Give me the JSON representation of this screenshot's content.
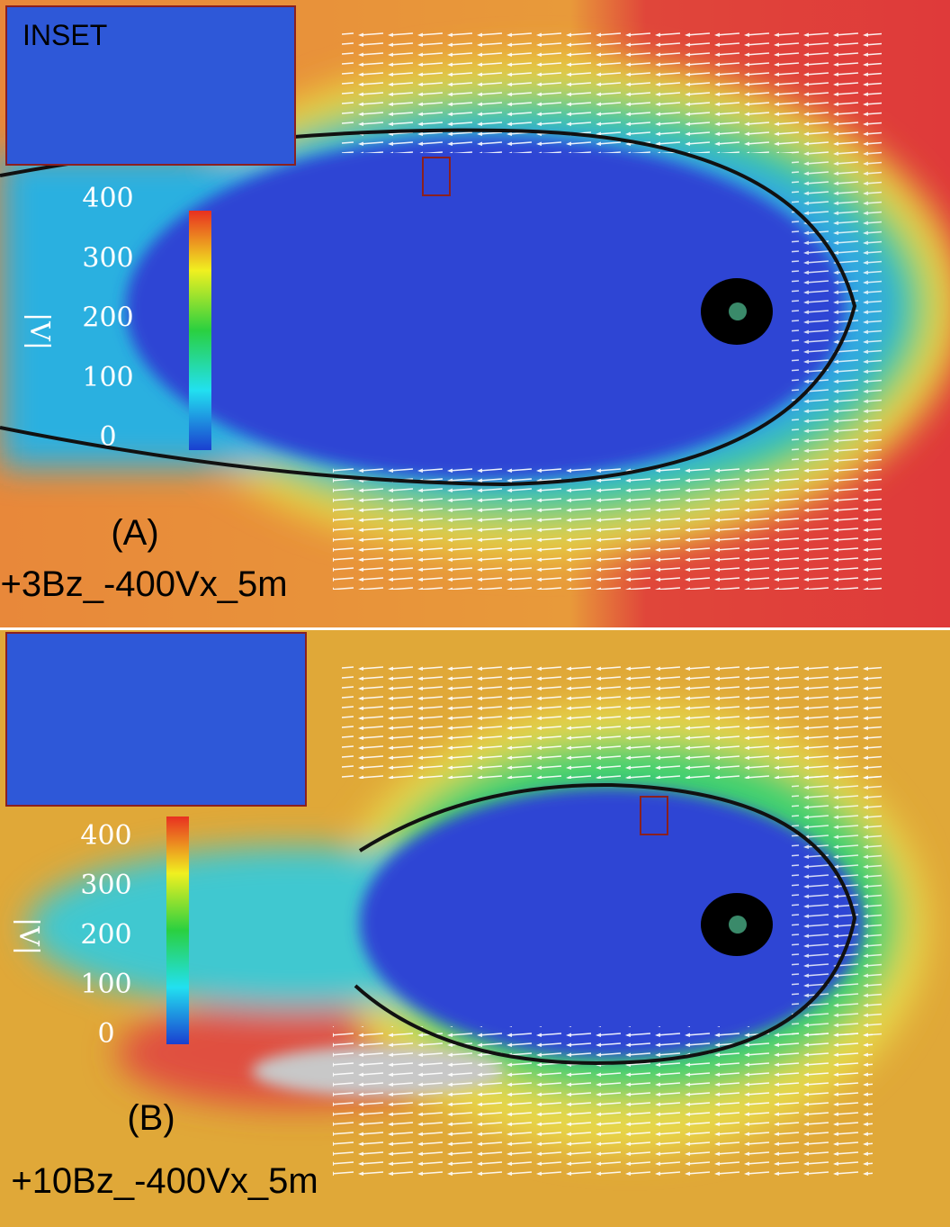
{
  "panels": [
    {
      "label": "(A)",
      "case": "+3Bz_-400Vx_5m",
      "inset": "INSET",
      "colorbar": {
        "title": "|V|",
        "ticks": [
          400,
          300,
          200,
          100,
          0
        ]
      }
    },
    {
      "label": "(B)",
      "case": "+10Bz_-400Vx_5m",
      "colorbar": {
        "title": "|V|",
        "ticks": [
          400,
          300,
          200,
          100,
          0
        ]
      }
    }
  ]
}
